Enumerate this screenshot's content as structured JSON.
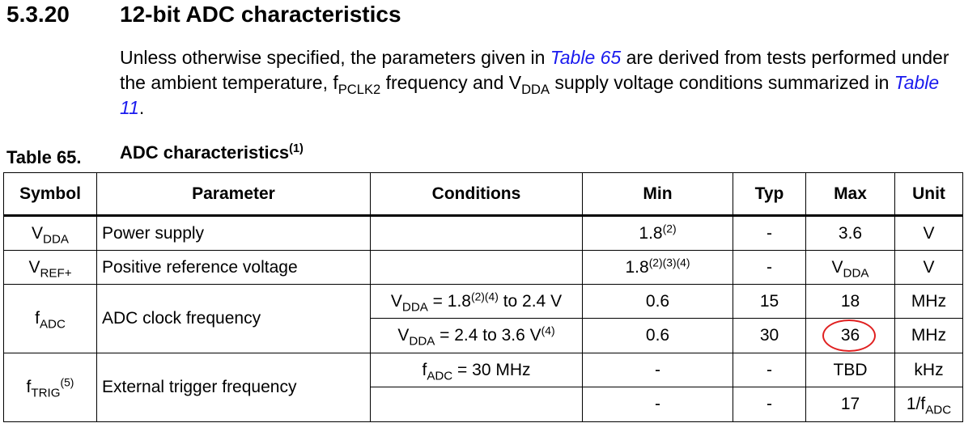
{
  "section": {
    "number": "5.3.20",
    "title": "12-bit ADC characteristics"
  },
  "intro": {
    "t1": "Unless otherwise specified, the parameters given in ",
    "link1": "Table 65",
    "t2": " are derived from tests performed under the ambient temperature, f",
    "sub1": "PCLK2",
    "t3": " frequency and V",
    "sub2": "DDA",
    "t4": " supply voltage conditions summarized in ",
    "link2": "Table 11",
    "t5": "."
  },
  "table": {
    "number": "Table 65.",
    "title": "ADC characteristics",
    "title_note": "(1)",
    "headers": [
      "Symbol",
      "Parameter",
      "Conditions",
      "Min",
      "Typ",
      "Max",
      "Unit"
    ],
    "vdda_row": {
      "sym": "V",
      "sym_sub": "DDA",
      "param": "Power supply",
      "min": "1.8",
      "min_note": "(2)",
      "typ": "-",
      "max": "3.6",
      "unit": "V"
    },
    "vref_row": {
      "sym": "V",
      "sym_sub": "REF+",
      "param": "Positive reference voltage",
      "min": "1.8",
      "min_note": "(2)(3)(4)",
      "typ": "-",
      "max": "V",
      "max_sub": "DDA",
      "unit": "V"
    },
    "fadc_row": {
      "sym": "f",
      "sym_sub": "ADC",
      "param": "ADC clock frequency",
      "cond1_a": "V",
      "cond1_sub": "DDA",
      "cond1_b": " = 1.8",
      "cond1_note": "(2)(4)",
      "cond1_c": " to 2.4 V",
      "min1": "0.6",
      "typ1": "15",
      "max1": "18",
      "unit1": "MHz",
      "cond2_a": "V",
      "cond2_sub": "DDA",
      "cond2_b": " = 2.4 to 3.6 V",
      "cond2_note": "(4)",
      "min2": "0.6",
      "typ2": "30",
      "max2": "36",
      "unit2": "MHz"
    },
    "ftrig_row": {
      "sym": "f",
      "sym_sub": "TRIG",
      "sym_note": "(5)",
      "param": "External trigger frequency",
      "cond1_a": "f",
      "cond1_sub": "ADC",
      "cond1_b": " = 30 MHz",
      "min1": "-",
      "typ1": "-",
      "max1": "TBD",
      "unit1": "kHz",
      "min2": "-",
      "typ2": "-",
      "max2": "17",
      "unit2_a": "1/f",
      "unit2_sub": "ADC"
    }
  },
  "colors": {
    "link": "#1a1aee",
    "highlight_circle": "#e02020"
  }
}
